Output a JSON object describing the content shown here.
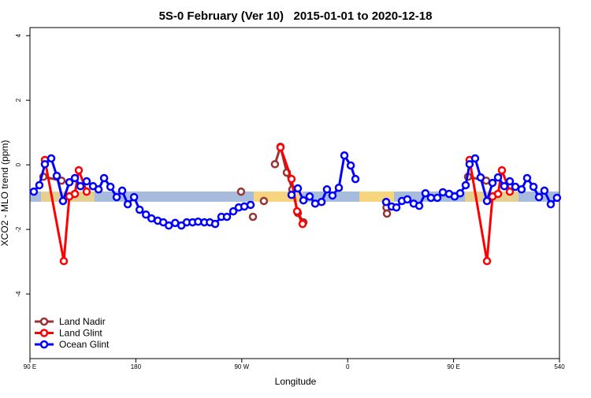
{
  "chart_data": {
    "type": "line",
    "title": "5S-0 February (Ver 10)   2015-01-01 to 2020-12-18",
    "x_label": "Longitude",
    "y_label": "XCO2 - MLO trend (ppm)",
    "xlim": [
      90,
      540
    ],
    "ylim": [
      -6,
      4.25
    ],
    "xticks": [
      {
        "value": 90,
        "label": "90 E"
      },
      180,
      {
        "value": 270,
        "label": "90 W"
      },
      {
        "value": 360,
        "label": "0"
      },
      {
        "value": 450,
        "label": "90 E"
      },
      540
    ],
    "yticks": [
      4,
      2,
      0,
      -2,
      -4
    ],
    "legend": "bottom-left",
    "series": [
      {
        "name": "Land Nadir",
        "color": "#993333",
        "x": [
          101.4,
          116.8,
          null,
          269.4,
          null,
          279.5,
          null,
          288.8,
          null,
          298.2,
          302.9,
          308.3,
          313.0,
          317.7,
          322.4,
          null,
          393.0,
          393.4,
          null,
          462.3,
          477.7
        ],
        "values": [
          -0.37,
          -0.49,
          null,
          -0.83,
          null,
          -1.61,
          null,
          -1.12,
          null,
          0.02,
          0.56,
          -0.24,
          -0.76,
          -1.49,
          -1.78,
          null,
          -1.32,
          -1.51,
          null,
          -0.37,
          -0.49
        ]
      },
      {
        "name": "Land Glint",
        "color": "#ff0000",
        "x": [
          102.7,
          118.8,
          123.5,
          128.2,
          131.5,
          138.2,
          null,
          302.9,
          312.3,
          317.0,
          321.7,
          null,
          463.6,
          478.4,
          483.1,
          487.8,
          491.1,
          497.8
        ],
        "values": [
          0.15,
          -2.98,
          -0.98,
          -0.9,
          -0.17,
          -0.83,
          null,
          0.54,
          -0.44,
          -1.44,
          -1.83,
          null,
          0.15,
          -2.98,
          -0.98,
          -0.9,
          -0.17,
          -0.83
        ]
      },
      {
        "name": "Ocean Glint",
        "color": "#0000ff",
        "x": [
          93.3,
          98.0,
          102.7,
          108.1,
          112.8,
          118.1,
          123.5,
          128.2,
          132.9,
          138.2,
          143.6,
          148.3,
          153.0,
          158.4,
          163.7,
          168.4,
          173.1,
          178.5,
          183.2,
          188.6,
          193.3,
          198.6,
          203.3,
          208.0,
          213.4,
          218.7,
          223.3,
          228.2,
          232.9,
          238.2,
          242.9,
          247.4,
          252.7,
          257.4,
          262.8,
          267.4,
          272.2,
          277.5,
          null,
          312.3,
          317.7,
          322.4,
          327.7,
          332.4,
          337.8,
          342.4,
          347.1,
          352.5,
          357.2,
          362.6,
          366.6,
          null,
          392.7,
          397.4,
          401.4,
          406.1,
          410.7,
          416.1,
          420.8,
          426.1,
          430.8,
          436.2,
          440.9,
          446.2,
          450.9,
          455.6,
          460.3,
          463.6,
          468.3,
          473.0,
          478.4,
          483.1,
          487.8,
          493.1,
          497.8,
          502.5,
          507.8,
          512.5,
          517.9,
          522.6,
          527.2,
          532.6,
          537.9
        ],
        "values": [
          -0.83,
          -0.63,
          0.02,
          0.2,
          -0.34,
          -1.12,
          -0.54,
          -0.41,
          -0.66,
          -0.51,
          -0.66,
          -0.76,
          -0.41,
          -0.68,
          -1.0,
          -0.8,
          -1.22,
          -1.0,
          -1.39,
          -1.54,
          -1.66,
          -1.73,
          -1.78,
          -1.88,
          -1.8,
          -1.88,
          -1.78,
          -1.78,
          -1.76,
          -1.78,
          -1.78,
          -1.83,
          -1.61,
          -1.61,
          -1.44,
          -1.32,
          -1.29,
          -1.24,
          null,
          -0.93,
          -0.73,
          -1.1,
          -0.98,
          -1.2,
          -1.15,
          -0.76,
          -0.95,
          -0.71,
          0.29,
          -0.02,
          -0.44,
          null,
          -1.15,
          -1.29,
          -1.32,
          -1.12,
          -1.07,
          -1.2,
          -1.27,
          -0.88,
          -1.02,
          -1.02,
          -0.85,
          -0.9,
          -0.98,
          -0.88,
          -0.63,
          0.02,
          0.2,
          -0.39,
          -1.12,
          -0.56,
          -0.39,
          -0.66,
          -0.51,
          -0.68,
          -0.76,
          -0.41,
          -0.68,
          -1.0,
          -0.8,
          -1.22,
          -1.02
        ]
      }
    ]
  }
}
